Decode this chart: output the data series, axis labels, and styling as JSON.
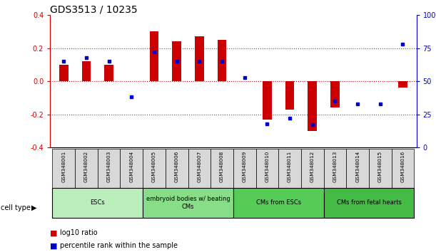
{
  "title": "GDS3513 / 10235",
  "samples": [
    "GSM348001",
    "GSM348002",
    "GSM348003",
    "GSM348004",
    "GSM348005",
    "GSM348006",
    "GSM348007",
    "GSM348008",
    "GSM348009",
    "GSM348010",
    "GSM348011",
    "GSM348012",
    "GSM348013",
    "GSM348014",
    "GSM348015",
    "GSM348016"
  ],
  "log10_ratio": [
    0.1,
    0.12,
    0.1,
    0.0,
    0.3,
    0.24,
    0.27,
    0.25,
    0.0,
    -0.23,
    -0.17,
    -0.3,
    -0.16,
    0.0,
    0.0,
    -0.04
  ],
  "percentile_rank": [
    65,
    68,
    65,
    38,
    72,
    65,
    65,
    65,
    53,
    18,
    22,
    17,
    35,
    33,
    33,
    78
  ],
  "cell_types": [
    {
      "label": "ESCs",
      "start": 0,
      "end": 4,
      "color": "#bbeebb"
    },
    {
      "label": "embryoid bodies w/ beating\nCMs",
      "start": 4,
      "end": 8,
      "color": "#88dd88"
    },
    {
      "label": "CMs from ESCs",
      "start": 8,
      "end": 12,
      "color": "#55cc55"
    },
    {
      "label": "CMs from fetal hearts",
      "start": 12,
      "end": 16,
      "color": "#44bb44"
    }
  ],
  "ylim": [
    -0.4,
    0.4
  ],
  "yticks_left": [
    -0.4,
    -0.2,
    0.0,
    0.2,
    0.4
  ],
  "yticks_right": [
    0,
    25,
    50,
    75,
    100
  ],
  "bar_color_red": "#cc0000",
  "bar_color_blue": "#0000cc",
  "dotted_line_color": "#555555",
  "zero_line_color": "#cc0000",
  "sample_box_color": "#d8d8d8",
  "title_fontsize": 10,
  "tick_fontsize": 7,
  "bar_width": 0.4
}
